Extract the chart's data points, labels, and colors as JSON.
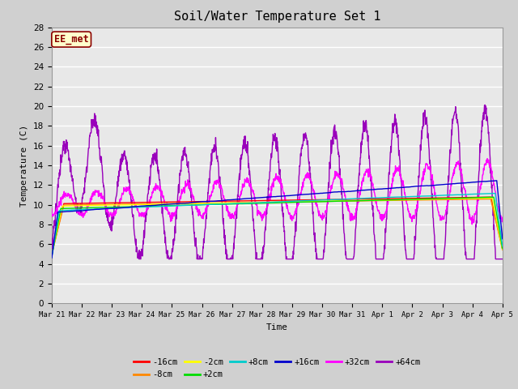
{
  "title": "Soil/Water Temperature Set 1",
  "ylabel": "Temperature (C)",
  "xlabel": "Time",
  "annotation": "EE_met",
  "fig_facecolor": "#d0d0d0",
  "ax_facecolor": "#e8e8e8",
  "ylim": [
    0,
    28
  ],
  "yticks": [
    0,
    2,
    4,
    6,
    8,
    10,
    12,
    14,
    16,
    18,
    20,
    22,
    24,
    26,
    28
  ],
  "num_points": 1500,
  "series": {
    "-16cm": {
      "color": "#ff0000",
      "linewidth": 1.0,
      "zorder": 5
    },
    "-8cm": {
      "color": "#ff8800",
      "linewidth": 1.0,
      "zorder": 5
    },
    "-2cm": {
      "color": "#ffff00",
      "linewidth": 1.0,
      "zorder": 5
    },
    "+2cm": {
      "color": "#00dd00",
      "linewidth": 1.0,
      "zorder": 5
    },
    "+8cm": {
      "color": "#00cccc",
      "linewidth": 1.0,
      "zorder": 5
    },
    "+16cm": {
      "color": "#0000cc",
      "linewidth": 1.0,
      "zorder": 6
    },
    "+32cm": {
      "color": "#ff00ff",
      "linewidth": 1.0,
      "zorder": 4
    },
    "+64cm": {
      "color": "#9900bb",
      "linewidth": 1.0,
      "zorder": 3
    }
  },
  "xtick_labels": [
    "Mar 21",
    "Mar 22",
    "Mar 23",
    "Mar 24",
    "Mar 25",
    "Mar 26",
    "Mar 27",
    "Mar 28",
    "Mar 29",
    "Mar 30",
    "Mar 31",
    "Apr 1",
    "Apr 2",
    "Apr 3",
    "Apr 4",
    "Apr 5"
  ],
  "legend_order": [
    "-16cm",
    "-8cm",
    "-2cm",
    "+2cm",
    "+8cm",
    "+16cm",
    "+32cm",
    "+64cm"
  ]
}
